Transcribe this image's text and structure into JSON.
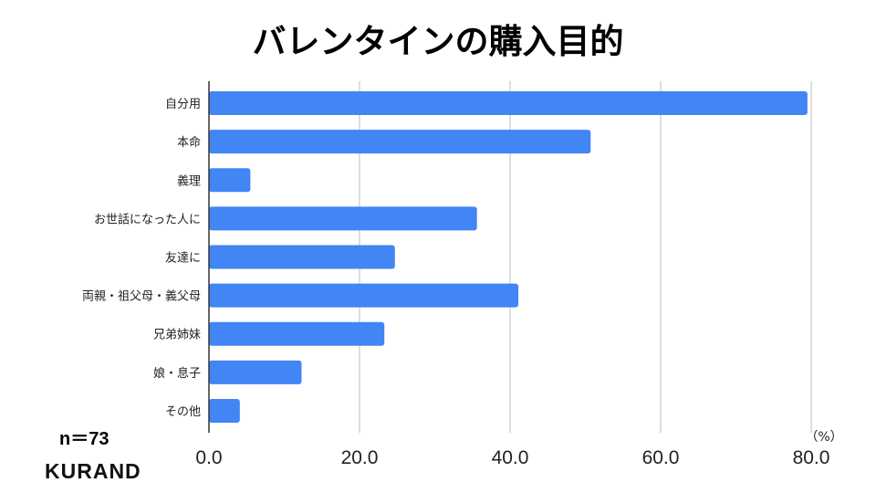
{
  "chart_data": {
    "type": "bar",
    "orientation": "horizontal",
    "title": "バレンタインの購入目的",
    "categories": [
      "自分用",
      "本命",
      "義理",
      "お世話になった人に",
      "友達に",
      "両親・祖父母・義父母",
      "兄弟姉妹",
      "娘・息子",
      "その他"
    ],
    "values": [
      79.5,
      50.7,
      5.5,
      35.6,
      24.7,
      41.1,
      23.3,
      12.3,
      4.1
    ],
    "xlim": [
      0,
      80
    ],
    "xticks": [
      "0.0",
      "20.0",
      "40.0",
      "60.0",
      "80.0"
    ],
    "xticks_values": [
      0,
      20,
      40,
      60,
      80
    ],
    "unit_label": "（%）",
    "grid": true,
    "bar_color": "#4285f4",
    "grid_color": "#cccccc",
    "axis_color": "#333333"
  },
  "annotation": {
    "sample_size": "n＝73",
    "brand": "KURAND"
  }
}
